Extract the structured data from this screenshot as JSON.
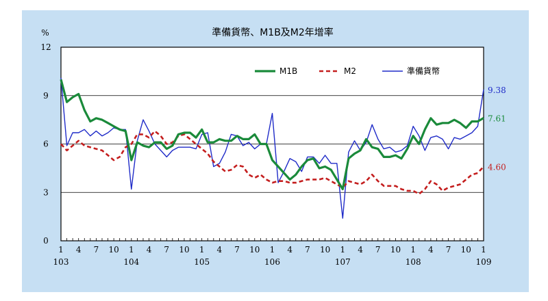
{
  "chart_data": {
    "type": "line",
    "title": "準備貨幣、M1B及M2年增率",
    "ylabel": "%",
    "ylim": [
      0,
      12
    ],
    "yticks": [
      "0",
      "3",
      "6",
      "9",
      "12"
    ],
    "x_month_ticks": [
      "1",
      "4",
      "7",
      "10",
      "1",
      "4",
      "7",
      "10",
      "1",
      "4",
      "7",
      "10",
      "1",
      "4",
      "7",
      "10",
      "1",
      "4",
      "7",
      "10",
      "1",
      "4",
      "7",
      "10",
      "1"
    ],
    "x_year_labels": [
      "103",
      "104",
      "105",
      "106",
      "107",
      "108",
      "109"
    ],
    "grid": true,
    "legend_position": "top-right",
    "colors": {
      "M1B": "#1a8a3a",
      "M2": "#c41e1e",
      "reserve": "#1f2bc8",
      "panel": "#c6dff3"
    },
    "series": [
      {
        "name": "M1B",
        "end_label": "7.61",
        "values": [
          10.0,
          8.6,
          8.9,
          9.1,
          8.1,
          7.4,
          7.6,
          7.5,
          7.3,
          7.1,
          6.9,
          6.8,
          5.0,
          6.1,
          5.9,
          5.8,
          6.1,
          6.1,
          5.7,
          5.9,
          6.6,
          6.7,
          6.7,
          6.4,
          6.9,
          6.1,
          6.1,
          6.3,
          6.2,
          6.2,
          6.5,
          6.3,
          6.3,
          6.6,
          6.0,
          6.0,
          5.0,
          4.6,
          4.2,
          3.8,
          4.1,
          4.6,
          5.0,
          5.1,
          4.5,
          4.6,
          4.4,
          3.8,
          3.2,
          5.1,
          5.4,
          5.6,
          6.3,
          5.8,
          5.7,
          5.2,
          5.2,
          5.3,
          5.1,
          5.7,
          6.5,
          6.0,
          6.9,
          7.6,
          7.2,
          7.3,
          7.3,
          7.5,
          7.3,
          7.0,
          7.4,
          7.4,
          7.61
        ]
      },
      {
        "name": "M2",
        "end_label": "4.60",
        "values": [
          6.0,
          5.6,
          5.9,
          6.2,
          5.9,
          5.8,
          5.7,
          5.6,
          5.3,
          5.0,
          5.2,
          5.8,
          6.0,
          6.6,
          6.6,
          6.4,
          6.8,
          6.5,
          6.0,
          6.1,
          6.5,
          6.6,
          6.3,
          6.0,
          5.7,
          5.4,
          4.9,
          4.6,
          4.3,
          4.4,
          4.7,
          4.6,
          4.1,
          3.9,
          4.1,
          3.8,
          3.6,
          3.7,
          3.7,
          3.6,
          3.6,
          3.7,
          3.8,
          3.8,
          3.8,
          3.9,
          3.7,
          3.5,
          3.3,
          3.7,
          3.6,
          3.5,
          3.7,
          4.1,
          3.7,
          3.4,
          3.4,
          3.4,
          3.2,
          3.1,
          3.1,
          2.9,
          3.2,
          3.7,
          3.5,
          3.1,
          3.3,
          3.4,
          3.5,
          3.8,
          4.1,
          4.2,
          4.6
        ]
      },
      {
        "name": "準備貨幣",
        "end_label": "9.38",
        "values": [
          10.1,
          5.9,
          6.7,
          6.7,
          6.9,
          6.5,
          6.8,
          6.5,
          6.7,
          7.0,
          6.9,
          6.9,
          3.2,
          6.2,
          7.5,
          6.8,
          6.0,
          5.6,
          5.2,
          5.6,
          5.8,
          5.8,
          5.8,
          5.7,
          6.6,
          6.7,
          4.6,
          4.8,
          5.5,
          6.6,
          6.5,
          5.9,
          6.1,
          5.7,
          6.0,
          6.0,
          7.9,
          3.6,
          4.3,
          5.1,
          4.9,
          4.3,
          5.2,
          5.2,
          4.8,
          5.3,
          4.8,
          4.8,
          1.4,
          5.5,
          6.2,
          5.6,
          6.1,
          7.2,
          6.3,
          5.7,
          5.8,
          5.5,
          5.6,
          5.9,
          7.1,
          6.5,
          5.6,
          6.4,
          6.5,
          6.3,
          5.7,
          6.4,
          6.3,
          6.5,
          6.7,
          7.1,
          9.38
        ]
      }
    ]
  }
}
